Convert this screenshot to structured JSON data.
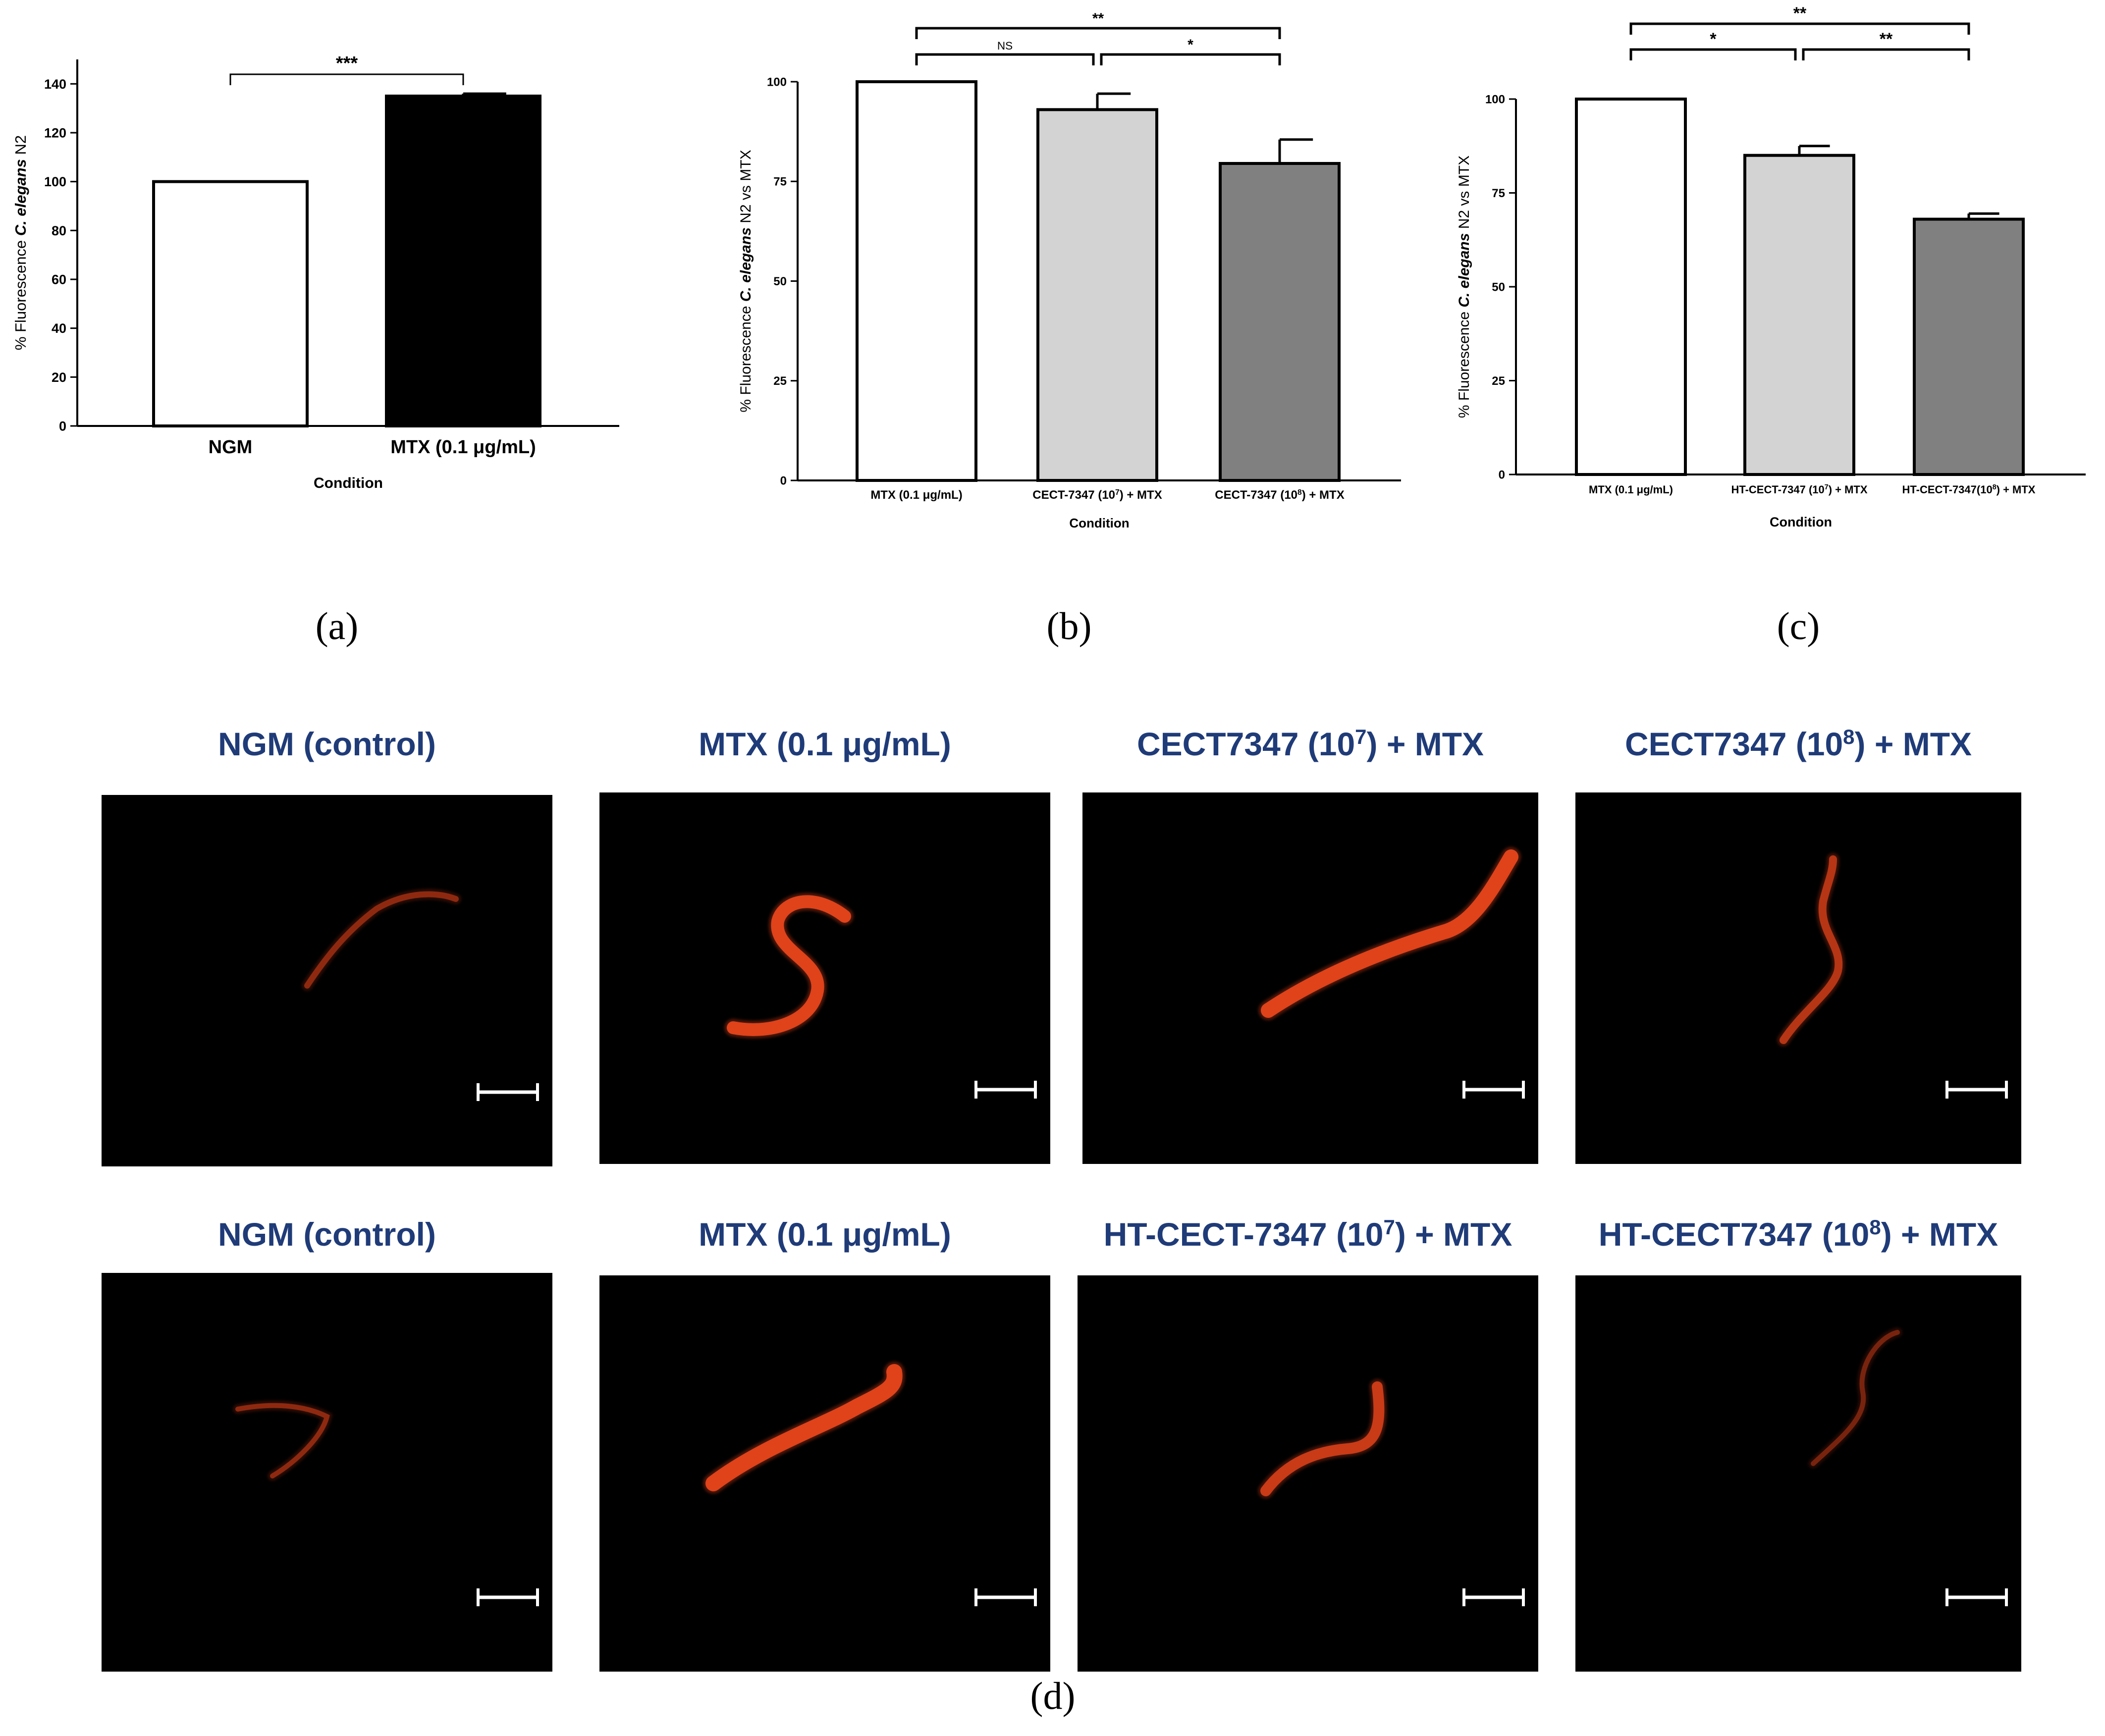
{
  "chart_data": [
    {
      "type": "bar",
      "panel_label": "(a)",
      "categories": [
        "NGM",
        "MTX (0.1 μg/mL)"
      ],
      "values": [
        100,
        135
      ],
      "errors": [
        0,
        1
      ],
      "bar_colors": [
        "#ffffff",
        "#000000"
      ],
      "xlabel": "Condition",
      "ylabel_prefix": "% Fluorescence ",
      "ylabel_italic": "C. elegans",
      "ylabel_suffix": " N2",
      "ylim": [
        0,
        150
      ],
      "yticks": [
        0,
        20,
        40,
        60,
        80,
        100,
        120,
        140
      ],
      "significance": [
        {
          "from": 0,
          "to": 1,
          "label": "***",
          "level": 0
        }
      ]
    },
    {
      "type": "bar",
      "panel_label": "(b)",
      "categories": [
        {
          "pre": "MTX (0.1 ",
          "mu": "μ",
          "post": "g/mL)",
          "sup": ""
        },
        {
          "pre": "CECT-7347 (10",
          "sup": "7",
          "post": ") + MTX"
        },
        {
          "pre": "CECT-7347 (10",
          "sup": "8",
          "post": ") + MTX"
        }
      ],
      "values": [
        100,
        93,
        79.5
      ],
      "errors": [
        0,
        4,
        6
      ],
      "bar_colors": [
        "#ffffff",
        "#d3d3d3",
        "#808080"
      ],
      "xlabel": "Condition",
      "ylabel_prefix": "% Fluorescence ",
      "ylabel_italic": "C. elegans",
      "ylabel_suffix": " N2 vs MTX",
      "ylim": [
        0,
        100
      ],
      "yticks": [
        0,
        25,
        50,
        75,
        100
      ],
      "significance": [
        {
          "from": 0,
          "to": 1,
          "label": "NS",
          "level": 0
        },
        {
          "from": 1,
          "to": 2,
          "label": "*",
          "level": 0
        },
        {
          "from": 0,
          "to": 2,
          "label": "**",
          "level": 1
        }
      ]
    },
    {
      "type": "bar",
      "panel_label": "(c)",
      "categories": [
        {
          "pre": "MTX (0.1 ",
          "mu": "μ",
          "post": "g/mL)",
          "sup": ""
        },
        {
          "pre": "HT-CECT-7347 (10",
          "sup": "7",
          "post": ") + MTX"
        },
        {
          "pre": "HT-CECT-7347(10",
          "sup": "8",
          "post": ") + MTX"
        }
      ],
      "values": [
        100,
        85,
        68
      ],
      "errors": [
        0,
        2.5,
        1.5
      ],
      "bar_colors": [
        "#ffffff",
        "#d3d3d3",
        "#808080"
      ],
      "xlabel": "Condition",
      "ylabel_prefix": "% Fluorescence ",
      "ylabel_italic": "C. elegans",
      "ylabel_suffix": " N2 vs MTX",
      "ylim": [
        0,
        100
      ],
      "yticks": [
        0,
        25,
        50,
        75,
        100
      ],
      "significance": [
        {
          "from": 0,
          "to": 1,
          "label": "*",
          "level": 0
        },
        {
          "from": 1,
          "to": 2,
          "label": "**",
          "level": 0
        },
        {
          "from": 0,
          "to": 2,
          "label": "**",
          "level": 1
        }
      ]
    }
  ],
  "micrographs": {
    "panel_label": "(d)",
    "rows": [
      [
        {
          "pre": "NGM (control)",
          "sup": "",
          "post": ""
        },
        {
          "pre": "MTX (0.1 μg/mL)",
          "sup": "",
          "post": ""
        },
        {
          "pre": "CECT7347 (10",
          "sup": "7",
          "post": ") + MTX"
        },
        {
          "pre": "CECT7347 (10",
          "sup": "8",
          "post": ") + MTX"
        }
      ],
      [
        {
          "pre": "NGM (control)",
          "sup": "",
          "post": ""
        },
        {
          "pre": "MTX (0.1 μg/mL)",
          "sup": "",
          "post": ""
        },
        {
          "pre": "HT-CECT-7347 (10",
          "sup": "7",
          "post": ") + MTX"
        },
        {
          "pre": "HT-CECT7347 (10",
          "sup": "8",
          "post": ") + MTX"
        }
      ]
    ],
    "worm_color": "#e0421a",
    "title_color": "#1f3b78",
    "background": "#000000"
  }
}
